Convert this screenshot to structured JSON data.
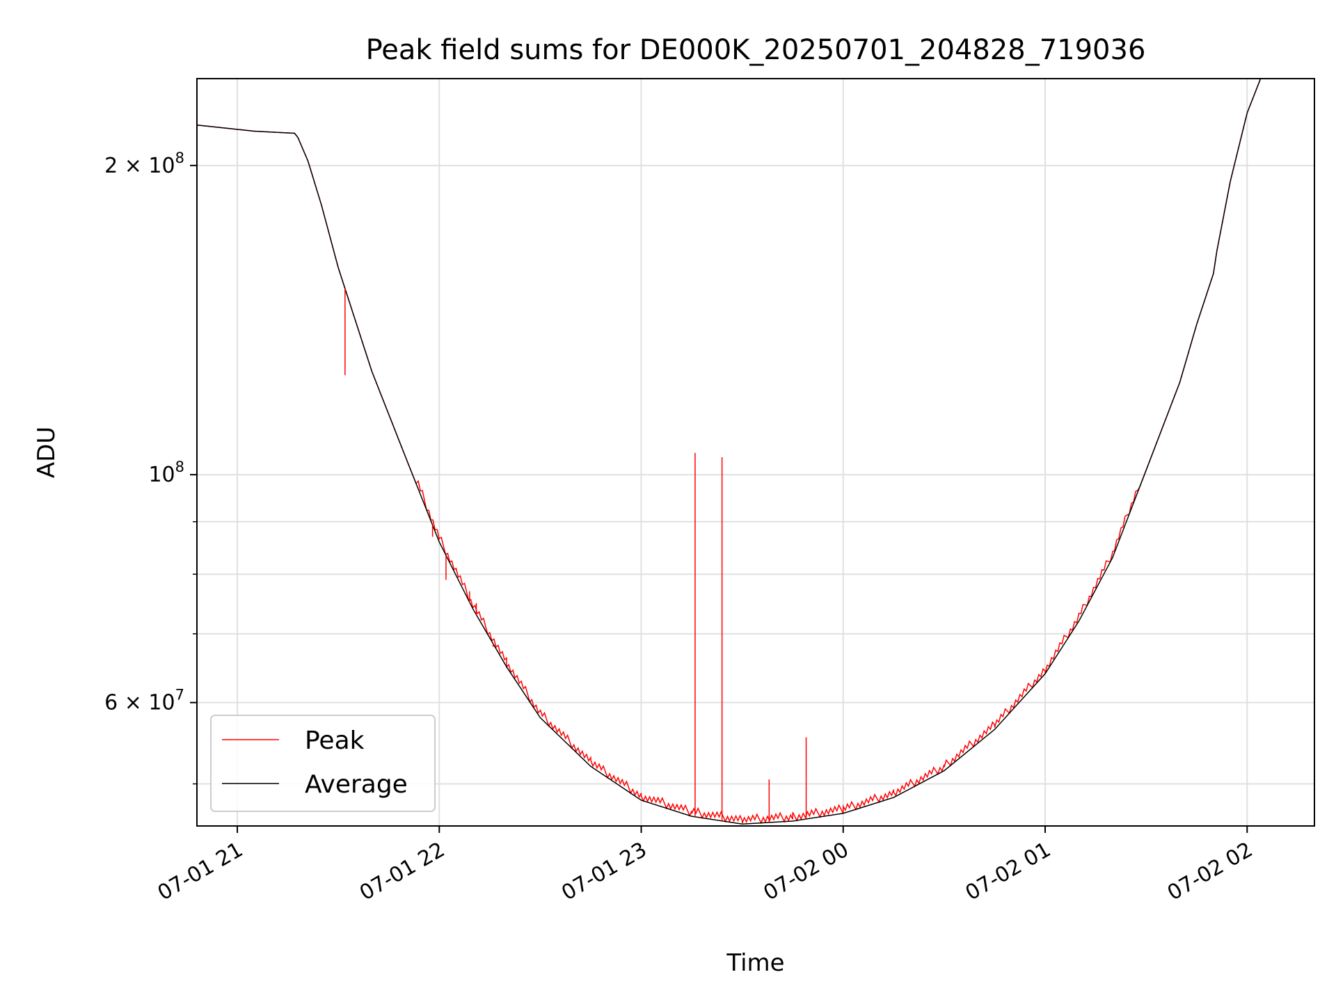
{
  "chart_data": {
    "type": "line",
    "title": "Peak field sums for DE000K_20250701_204828_719036",
    "xlabel": "Time",
    "ylabel": "ADU",
    "y_scale": "log",
    "grid": true,
    "legend_placement": "lower-left",
    "xlim": [
      "2025-07-01 20:48",
      "2025-07-02 02:20"
    ],
    "ylim": [
      45500000,
      243000000
    ],
    "x_ticks": [
      {
        "time": "2025-07-01 21:00",
        "label": "07-01 21"
      },
      {
        "time": "2025-07-01 22:00",
        "label": "07-01 22"
      },
      {
        "time": "2025-07-01 23:00",
        "label": "07-01 23"
      },
      {
        "time": "2025-07-02 00:00",
        "label": "07-02 00"
      },
      {
        "time": "2025-07-02 01:00",
        "label": "07-02 01"
      },
      {
        "time": "2025-07-02 02:00",
        "label": "07-02 02"
      }
    ],
    "y_major_ticks": [
      {
        "value": 200000000,
        "base": "2 × 10",
        "exp": "8"
      },
      {
        "value": 100000000,
        "base": "10",
        "exp": "8"
      },
      {
        "value": 60000000,
        "base": "6 × 10",
        "exp": "7"
      }
    ],
    "y_minor_gridlines": [
      50000000,
      70000000,
      80000000,
      90000000
    ],
    "series": [
      {
        "name": "Average",
        "color": "#000000",
        "points": [
          [
            "2025-07-01 20:48",
            219000000
          ],
          [
            "2025-07-01 21:05",
            216000000
          ],
          [
            "2025-07-01 21:17",
            215000000
          ],
          [
            "2025-07-01 21:18",
            213000000
          ],
          [
            "2025-07-01 21:21",
            202000000
          ],
          [
            "2025-07-01 21:25",
            183000000
          ],
          [
            "2025-07-01 21:30",
            159000000
          ],
          [
            "2025-07-01 21:40",
            126000000
          ],
          [
            "2025-07-01 21:50",
            104000000
          ],
          [
            "2025-07-01 22:00",
            86000000
          ],
          [
            "2025-07-01 22:10",
            74000000
          ],
          [
            "2025-07-01 22:20",
            65000000
          ],
          [
            "2025-07-01 22:30",
            58000000
          ],
          [
            "2025-07-01 22:45",
            52000000
          ],
          [
            "2025-07-01 23:00",
            48200000
          ],
          [
            "2025-07-01 23:15",
            46500000
          ],
          [
            "2025-07-01 23:30",
            45700000
          ],
          [
            "2025-07-01 23:45",
            46000000
          ],
          [
            "2025-07-02 00:00",
            46800000
          ],
          [
            "2025-07-02 00:15",
            48500000
          ],
          [
            "2025-07-02 00:30",
            51500000
          ],
          [
            "2025-07-02 00:45",
            56500000
          ],
          [
            "2025-07-02 01:00",
            64000000
          ],
          [
            "2025-07-02 01:10",
            72000000
          ],
          [
            "2025-07-02 01:20",
            83000000
          ],
          [
            "2025-07-02 01:30",
            101000000
          ],
          [
            "2025-07-02 01:40",
            123000000
          ],
          [
            "2025-07-02 01:45",
            140000000
          ],
          [
            "2025-07-02 01:50",
            157000000
          ],
          [
            "2025-07-02 01:51",
            165000000
          ],
          [
            "2025-07-02 01:55",
            193000000
          ],
          [
            "2025-07-02 02:00",
            225000000
          ],
          [
            "2025-07-02 02:04",
            243000000
          ],
          [
            "2025-07-02 02:20",
            243000000
          ]
        ]
      },
      {
        "name": "Peak",
        "color": "#ff0000",
        "spikes": [
          [
            "2025-07-01 21:32",
            125000000
          ],
          [
            "2025-07-01 21:58",
            87000000
          ],
          [
            "2025-07-01 22:02",
            79000000
          ],
          [
            "2025-07-01 22:09",
            77000000
          ],
          [
            "2025-07-01 22:11",
            75000000
          ],
          [
            "2025-07-01 22:16",
            68000000
          ],
          [
            "2025-07-01 23:16",
            105000000
          ],
          [
            "2025-07-01 23:24",
            104000000
          ],
          [
            "2025-07-01 23:38",
            50500000
          ],
          [
            "2025-07-01 23:49",
            55500000
          ]
        ]
      }
    ]
  }
}
